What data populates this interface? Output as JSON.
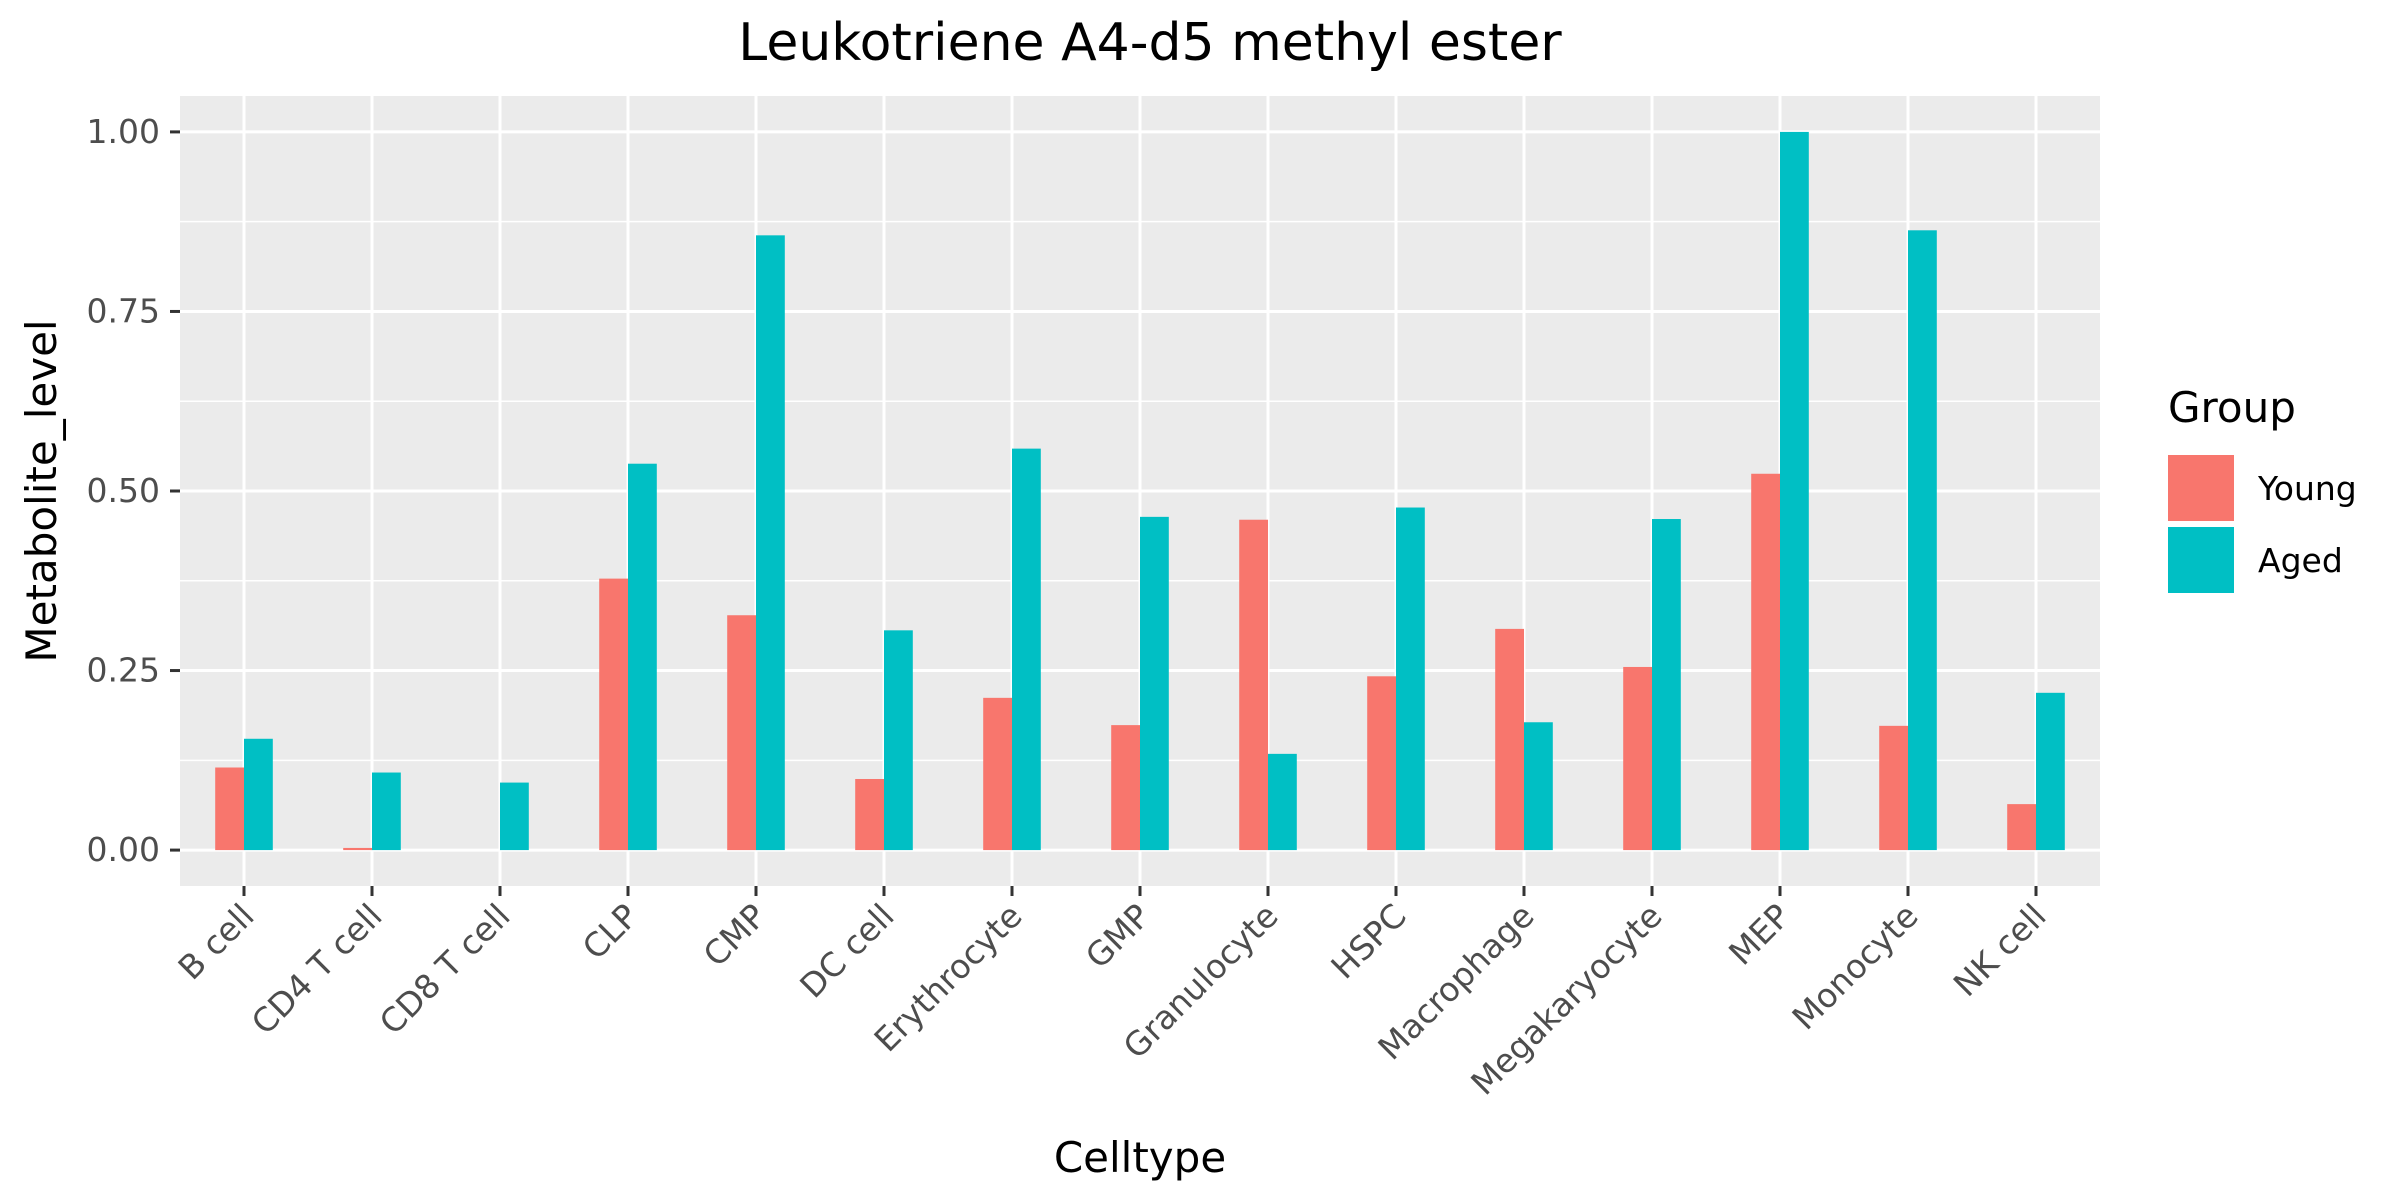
{
  "chart_data": {
    "type": "bar",
    "title": "Leukotriene A4-d5 methyl ester",
    "xlabel": "Celltype",
    "ylabel": "Metabolite_level",
    "ylim": [
      -0.05,
      1.05
    ],
    "yticks": [
      0.0,
      0.25,
      0.5,
      0.75,
      1.0
    ],
    "ytick_labels": [
      "0.00",
      "0.25",
      "0.50",
      "0.75",
      "1.00"
    ],
    "categories": [
      "B cell",
      "CD4 T cell",
      "CD8 T cell",
      "CLP",
      "CMP",
      "DC cell",
      "Erythrocyte",
      "GMP",
      "Granulocyte",
      "HSPC",
      "Macrophage",
      "Megakaryocyte",
      "MEP",
      "Monocyte",
      "NK cell"
    ],
    "series": [
      {
        "name": "Young",
        "color": "#F8766D",
        "values": [
          0.115,
          0.003,
          0.0,
          0.378,
          0.327,
          0.099,
          0.212,
          0.174,
          0.46,
          0.242,
          0.308,
          0.255,
          0.524,
          0.173,
          0.064
        ]
      },
      {
        "name": "Aged",
        "color": "#00BFC4",
        "values": [
          0.155,
          0.108,
          0.094,
          0.538,
          0.856,
          0.306,
          0.559,
          0.464,
          0.134,
          0.477,
          0.178,
          0.461,
          1.0,
          0.863,
          0.219
        ]
      }
    ],
    "grid": true,
    "panel_background": "#EBEBEB",
    "legend": {
      "title": "Group",
      "position": "right"
    }
  }
}
